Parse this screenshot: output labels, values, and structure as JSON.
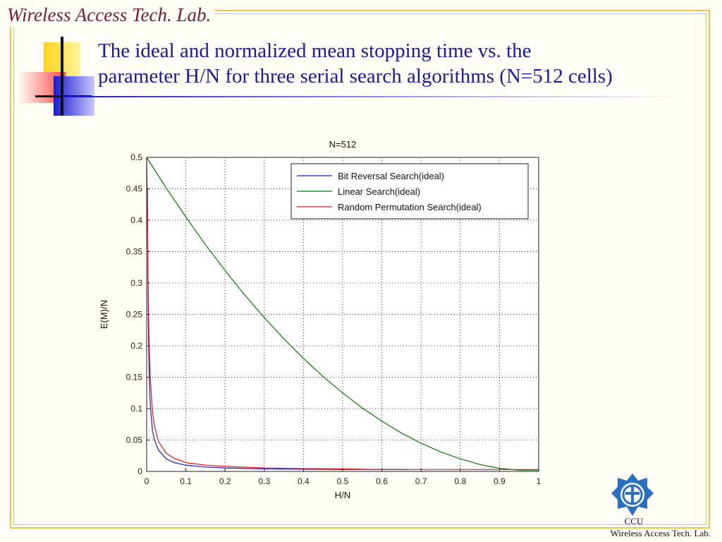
{
  "header": {
    "lab_name": "Wireless Access Tech. Lab."
  },
  "slide": {
    "title_line1": "The ideal and normalized mean stopping time vs. the",
    "title_line2": "parameter H/N for three serial search algorithms (N=512 cells)"
  },
  "footer": {
    "org": "CCU",
    "lab": "Wireless Access Tech. Lab."
  },
  "colors": {
    "title_text": "#1a1a9a",
    "header_text": "#7a1a3a",
    "frame": "#f3c24c",
    "bit_reversal": "#1f1fd0",
    "linear": "#007a00",
    "random_permutation": "#e01818"
  },
  "logo": {
    "icon": "ccu-emblem-icon"
  },
  "chart_data": {
    "type": "line",
    "title": "N=512",
    "xlabel": "H/N",
    "ylabel": "E(M)/N",
    "xlim": [
      0,
      1
    ],
    "ylim": [
      0,
      0.5
    ],
    "x_ticks": [
      "0",
      "0.1",
      "0.2",
      "0.3",
      "0.4",
      "0.5",
      "0.6",
      "0.7",
      "0.8",
      "0.9",
      "1"
    ],
    "y_ticks": [
      "0",
      "0.05",
      "0.1",
      "0.15",
      "0.2",
      "0.25",
      "0.3",
      "0.35",
      "0.4",
      "0.45",
      "0.5"
    ],
    "grid": true,
    "legend_position": "top-right",
    "series": [
      {
        "name": "Bit Reversal Search(ideal)",
        "color": "#1f1fd0",
        "x": [
          0.002,
          0.003,
          0.004,
          0.006,
          0.008,
          0.01,
          0.015,
          0.02,
          0.03,
          0.05,
          0.07,
          0.1,
          0.15,
          0.2,
          0.3,
          0.4,
          0.5,
          0.6,
          0.67
        ],
        "y": [
          0.45,
          0.32,
          0.25,
          0.17,
          0.125,
          0.1,
          0.065,
          0.05,
          0.034,
          0.02,
          0.014,
          0.01,
          0.007,
          0.0055,
          0.004,
          0.0035,
          0.003,
          0.003,
          0.003
        ]
      },
      {
        "name": "Linear Search(ideal)",
        "color": "#007a00",
        "x": [
          0,
          0.05,
          0.1,
          0.15,
          0.2,
          0.25,
          0.3,
          0.35,
          0.4,
          0.45,
          0.5,
          0.55,
          0.6,
          0.65,
          0.7,
          0.75,
          0.8,
          0.85,
          0.9,
          0.95,
          1
        ],
        "y": [
          0.5,
          0.451,
          0.405,
          0.361,
          0.32,
          0.281,
          0.245,
          0.211,
          0.18,
          0.151,
          0.125,
          0.101,
          0.08,
          0.061,
          0.045,
          0.031,
          0.02,
          0.011,
          0.005,
          0.002,
          0.002
        ]
      },
      {
        "name": "Random Permutation Search(ideal)",
        "color": "#e01818",
        "x": [
          0,
          0.002,
          0.004,
          0.006,
          0.008,
          0.01,
          0.015,
          0.02,
          0.03,
          0.05,
          0.07,
          0.1,
          0.15,
          0.2,
          0.3,
          0.4,
          0.5,
          0.6,
          0.7,
          0.8,
          0.9,
          1
        ],
        "y": [
          0.5,
          0.41,
          0.29,
          0.22,
          0.17,
          0.14,
          0.095,
          0.072,
          0.048,
          0.029,
          0.021,
          0.014,
          0.01,
          0.008,
          0.0055,
          0.0045,
          0.004,
          0.003,
          0.003,
          0.003,
          0.003,
          0.003
        ]
      }
    ]
  }
}
